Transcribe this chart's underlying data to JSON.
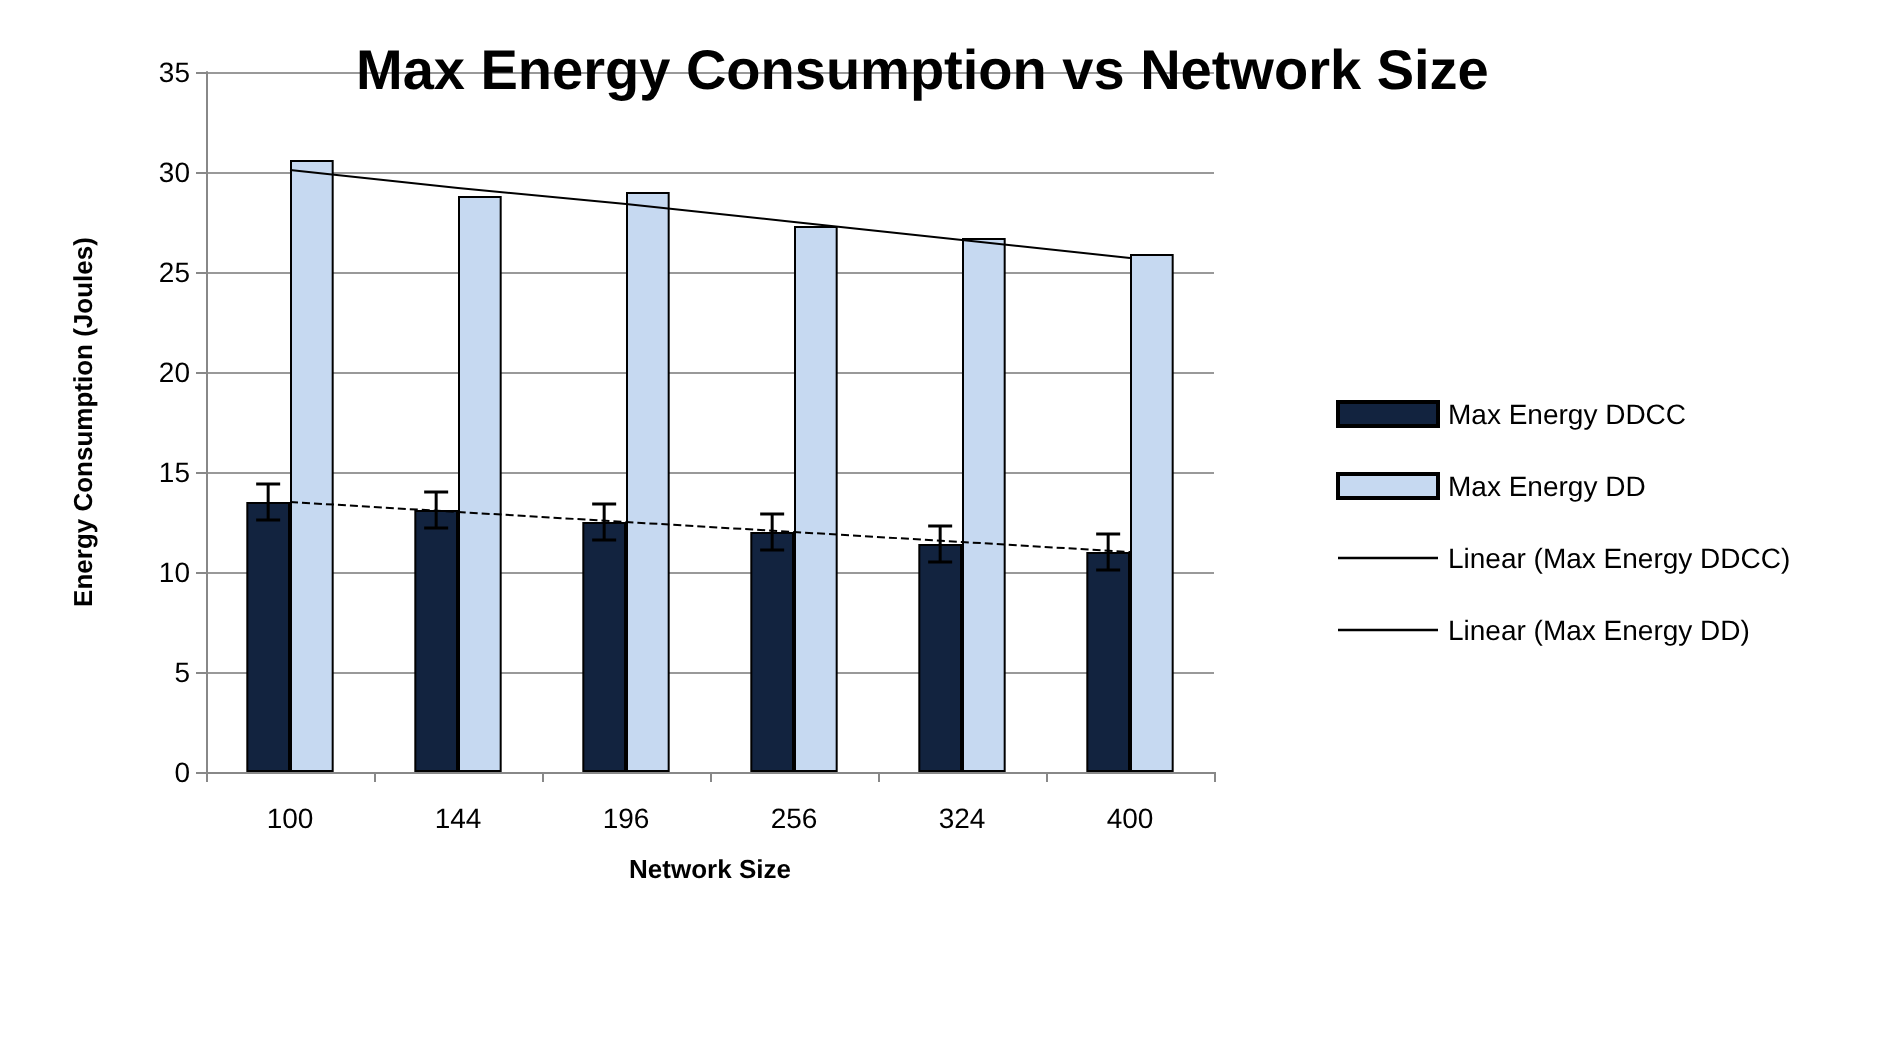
{
  "chart_data": {
    "type": "bar",
    "title": "Max Energy Consumption vs Network Size",
    "xlabel": "Network Size",
    "ylabel": "Energy Consumption (Joules)",
    "categories": [
      "100",
      "144",
      "196",
      "256",
      "324",
      "400"
    ],
    "series": [
      {
        "name": "Max Energy DDCC",
        "color": "#12233f",
        "values": [
          13.5,
          13.1,
          12.5,
          12.0,
          11.4,
          11.0
        ],
        "errors": [
          0.9,
          0.9,
          0.9,
          0.9,
          0.9,
          0.9
        ]
      },
      {
        "name": "Max Energy DD",
        "color": "#c6d9f1",
        "values": [
          30.6,
          28.8,
          29.0,
          27.3,
          26.7,
          25.9
        ]
      },
      {
        "name": "Linear (Max Energy DDCC)",
        "type": "line",
        "color": "#000000",
        "line_style": "dashed",
        "values": [
          13.5,
          13.0,
          12.5,
          12.0,
          11.5,
          11.0
        ]
      },
      {
        "name": "Linear (Max Energy DD)",
        "type": "line",
        "color": "#000000",
        "line_style": "solid",
        "values": [
          30.1,
          29.2,
          28.4,
          27.5,
          26.6,
          25.7
        ]
      }
    ],
    "ylim": [
      0,
      35
    ],
    "yticks": [
      0,
      5,
      10,
      15,
      20,
      25,
      30,
      35
    ],
    "grid": "y",
    "legend": "right",
    "marker": "none"
  }
}
